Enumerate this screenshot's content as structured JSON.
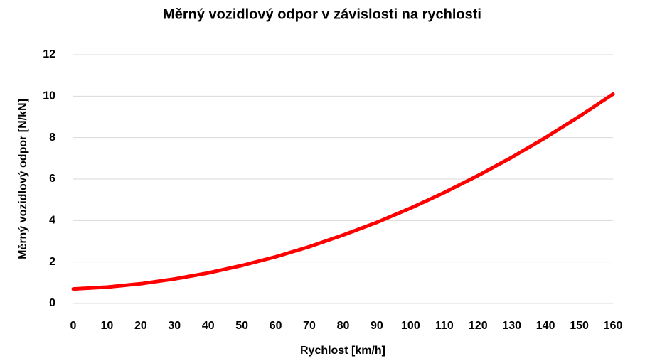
{
  "chart_data": {
    "type": "line",
    "title": "Měrný vozidlový odpor v závislosti na rychlosti",
    "xlabel": "Rychlost [km/h]",
    "ylabel": "Měrný vozidlový odpor [N/kN]",
    "x": [
      0,
      10,
      20,
      30,
      40,
      50,
      60,
      70,
      80,
      90,
      100,
      110,
      120,
      130,
      140,
      150,
      160
    ],
    "series": [
      {
        "name": "Měrný vozidlový odpor",
        "color": "#ff0000",
        "values": [
          0.7,
          0.79,
          0.95,
          1.18,
          1.47,
          1.83,
          2.25,
          2.74,
          3.3,
          3.91,
          4.6,
          5.35,
          6.17,
          7.05,
          8.0,
          9.02,
          10.1
        ]
      }
    ],
    "xlim": [
      0,
      160
    ],
    "xticks": [
      0,
      10,
      20,
      30,
      40,
      50,
      60,
      70,
      80,
      90,
      100,
      110,
      120,
      130,
      140,
      150,
      160
    ],
    "ylim": [
      0,
      12
    ],
    "yticks": [
      0,
      2,
      4,
      6,
      8,
      10,
      12
    ],
    "grid": true
  }
}
